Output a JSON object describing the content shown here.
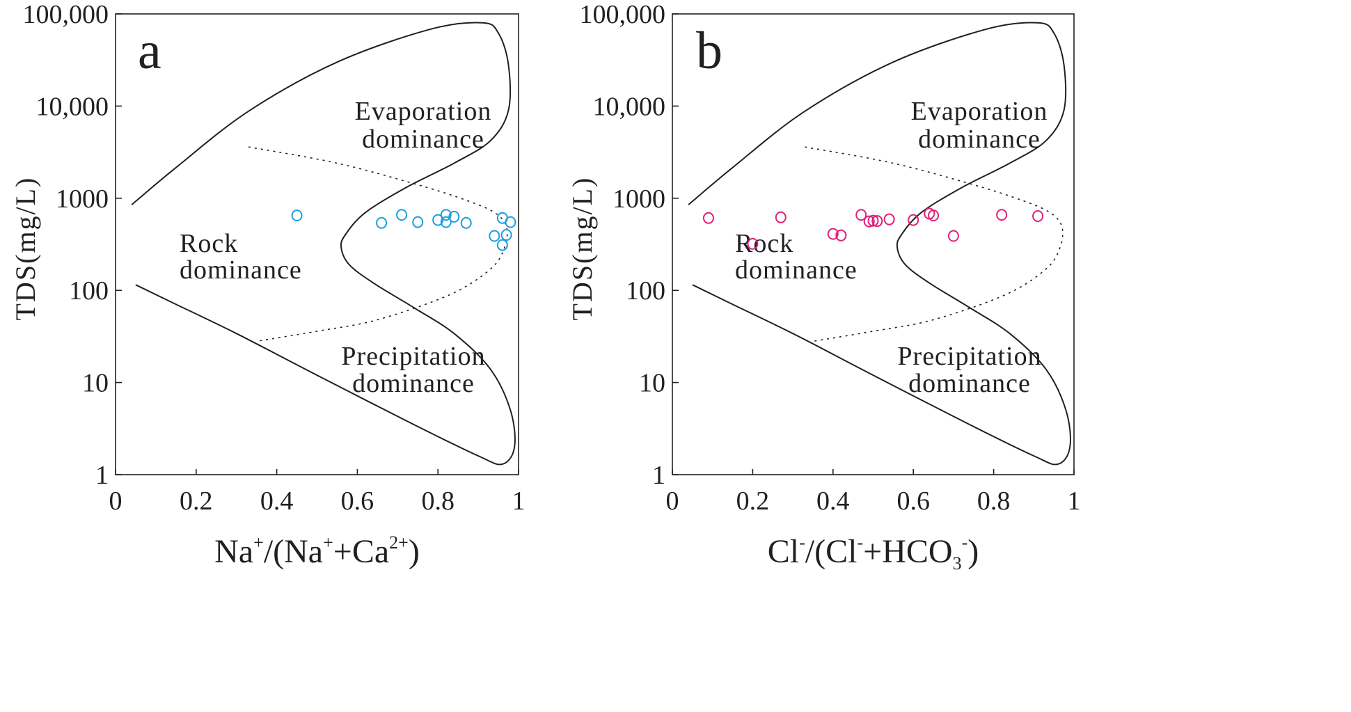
{
  "chart_data": [
    {
      "type": "scatter",
      "panel_label": "a",
      "xlabel": {
        "base": "Na",
        "sup1": "+",
        "mid1": "/(Na",
        "sup2": "+",
        "mid2": "+Ca",
        "sup3": "2+",
        "end": ")"
      },
      "ylabel": "TDS(mg/L)",
      "xlim": [
        0,
        1
      ],
      "ylim": [
        1,
        100000
      ],
      "yscale": "log",
      "x_ticks": [
        {
          "v": 0,
          "label": "0"
        },
        {
          "v": 0.2,
          "label": "0.2"
        },
        {
          "v": 0.4,
          "label": "0.4"
        },
        {
          "v": 0.6,
          "label": "0.6"
        },
        {
          "v": 0.8,
          "label": "0.8"
        },
        {
          "v": 1,
          "label": "1"
        }
      ],
      "y_ticks": [
        {
          "v": 1,
          "label": "1"
        },
        {
          "v": 10,
          "label": "10"
        },
        {
          "v": 100,
          "label": "100"
        },
        {
          "v": 1000,
          "label": "1000"
        },
        {
          "v": 10000,
          "label": "10,000"
        },
        {
          "v": 100000,
          "label": "100,000"
        }
      ],
      "regions": {
        "evaporation": [
          "Evaporation",
          "dominance"
        ],
        "rock": [
          "Rock",
          "dominance"
        ],
        "precipitation": [
          "Precipitation",
          "dominance"
        ]
      },
      "marker_color": "#1a9fdf",
      "points": [
        {
          "x": 0.45,
          "y": 650
        },
        {
          "x": 0.66,
          "y": 540
        },
        {
          "x": 0.71,
          "y": 660
        },
        {
          "x": 0.75,
          "y": 550
        },
        {
          "x": 0.8,
          "y": 580
        },
        {
          "x": 0.82,
          "y": 660
        },
        {
          "x": 0.82,
          "y": 550
        },
        {
          "x": 0.84,
          "y": 630
        },
        {
          "x": 0.87,
          "y": 540
        },
        {
          "x": 0.94,
          "y": 390
        },
        {
          "x": 0.96,
          "y": 610
        },
        {
          "x": 0.96,
          "y": 310
        },
        {
          "x": 0.97,
          "y": 400
        },
        {
          "x": 0.98,
          "y": 550
        }
      ]
    },
    {
      "type": "scatter",
      "panel_label": "b",
      "xlabel": {
        "base": "Cl",
        "sup1": "-",
        "mid1": "/(Cl",
        "sup2": "-",
        "mid2": "+HCO",
        "sub": "3",
        "sup3": "-",
        "end": ")"
      },
      "ylabel": "TDS(mg/L)",
      "xlim": [
        0,
        1
      ],
      "ylim": [
        1,
        100000
      ],
      "yscale": "log",
      "x_ticks": [
        {
          "v": 0,
          "label": "0"
        },
        {
          "v": 0.2,
          "label": "0.2"
        },
        {
          "v": 0.4,
          "label": "0.4"
        },
        {
          "v": 0.6,
          "label": "0.6"
        },
        {
          "v": 0.8,
          "label": "0.8"
        },
        {
          "v": 1,
          "label": "1"
        }
      ],
      "y_ticks": [
        {
          "v": 1,
          "label": "1"
        },
        {
          "v": 10,
          "label": "10"
        },
        {
          "v": 100,
          "label": "100"
        },
        {
          "v": 1000,
          "label": "1000"
        },
        {
          "v": 10000,
          "label": "10,000"
        },
        {
          "v": 100000,
          "label": "100,000"
        }
      ],
      "regions": {
        "evaporation": [
          "Evaporation",
          "dominance"
        ],
        "rock": [
          "Rock",
          "dominance"
        ],
        "precipitation": [
          "Precipitation",
          "dominance"
        ]
      },
      "marker_color": "#e0207a",
      "points": [
        {
          "x": 0.09,
          "y": 610
        },
        {
          "x": 0.2,
          "y": 320
        },
        {
          "x": 0.27,
          "y": 620
        },
        {
          "x": 0.4,
          "y": 410
        },
        {
          "x": 0.42,
          "y": 395
        },
        {
          "x": 0.47,
          "y": 660
        },
        {
          "x": 0.49,
          "y": 560
        },
        {
          "x": 0.5,
          "y": 570
        },
        {
          "x": 0.51,
          "y": 565
        },
        {
          "x": 0.54,
          "y": 590
        },
        {
          "x": 0.6,
          "y": 580
        },
        {
          "x": 0.64,
          "y": 680
        },
        {
          "x": 0.65,
          "y": 650
        },
        {
          "x": 0.7,
          "y": 390
        },
        {
          "x": 0.82,
          "y": 660
        },
        {
          "x": 0.91,
          "y": 640
        }
      ]
    }
  ]
}
